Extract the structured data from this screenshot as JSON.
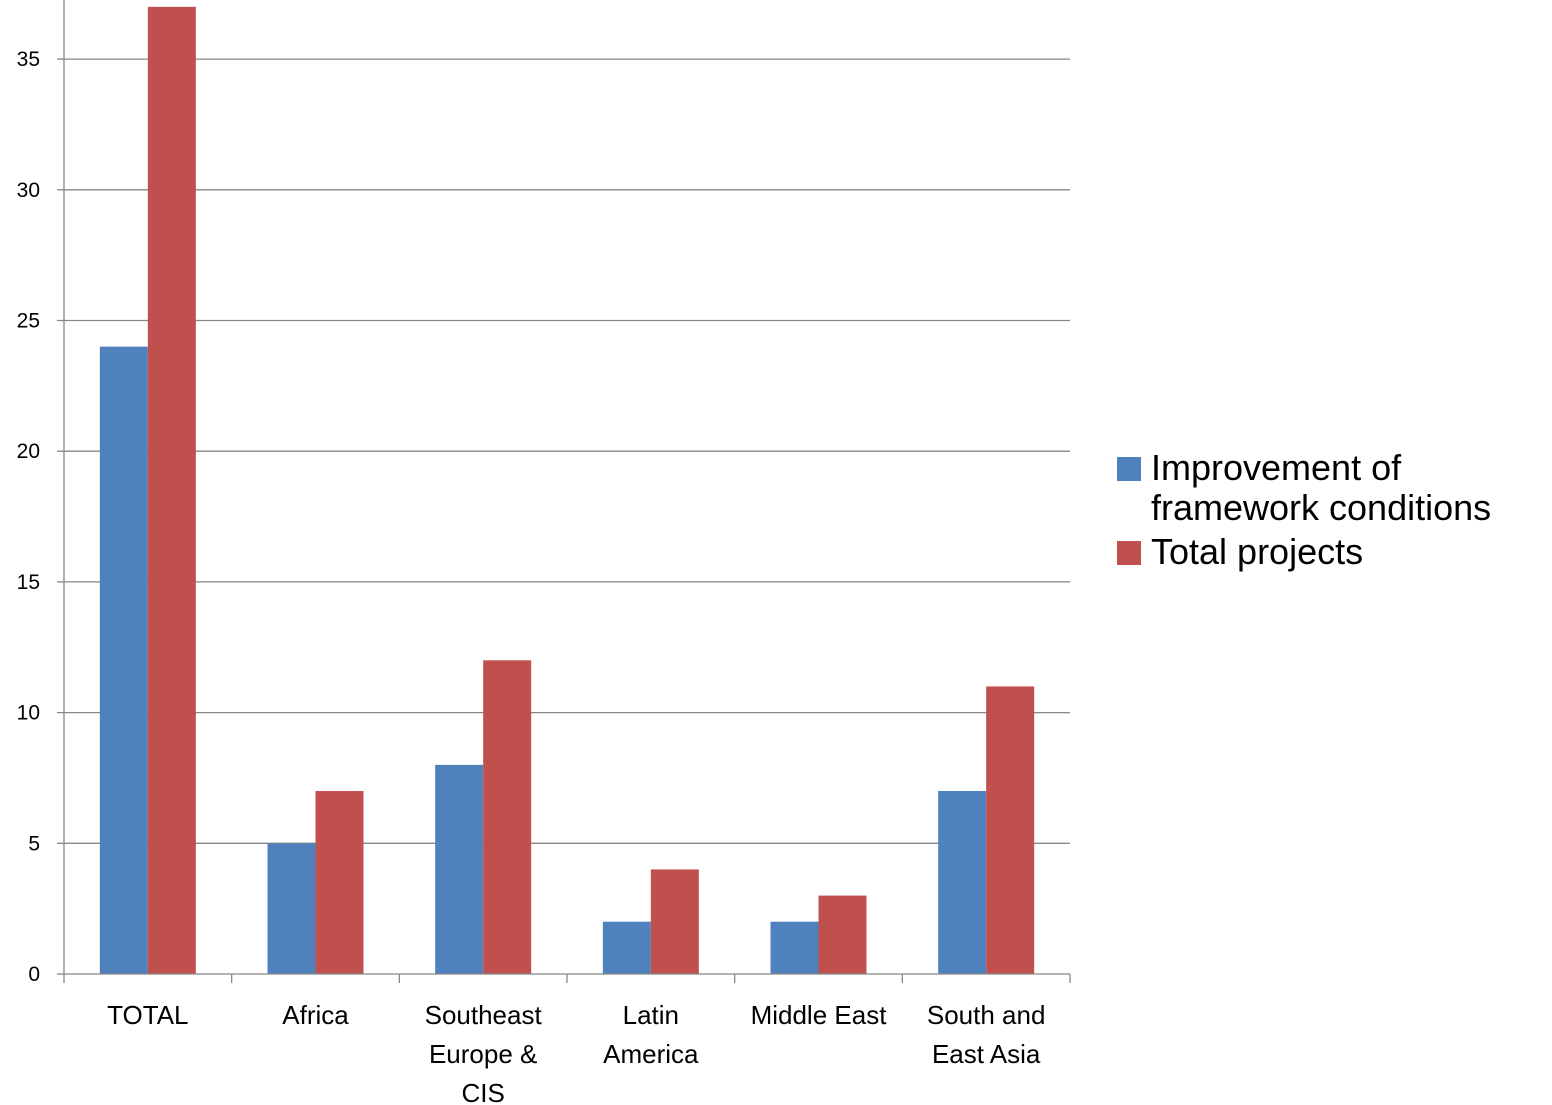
{
  "chart_data": {
    "type": "bar",
    "categories": [
      [
        "TOTAL"
      ],
      [
        "Africa"
      ],
      [
        "Southeast",
        "Europe &",
        "CIS"
      ],
      [
        "Latin",
        "America"
      ],
      [
        "Middle East"
      ],
      [
        "South and",
        "East Asia"
      ]
    ],
    "series": [
      {
        "name": "Improvement of framework conditions",
        "name_lines": [
          "Improvement of",
          "framework conditions"
        ],
        "color": "#4f81bd",
        "values": [
          24,
          5,
          8,
          2,
          2,
          7
        ]
      },
      {
        "name": "Total projects",
        "name_lines": [
          "Total projects"
        ],
        "color": "#c0504d",
        "values": [
          37,
          7,
          12,
          4,
          3,
          11
        ]
      }
    ],
    "yticks": [
      0,
      5,
      10,
      15,
      20,
      25,
      30,
      35
    ],
    "ylim": [
      0,
      35
    ],
    "grid": true,
    "legend": "right"
  }
}
